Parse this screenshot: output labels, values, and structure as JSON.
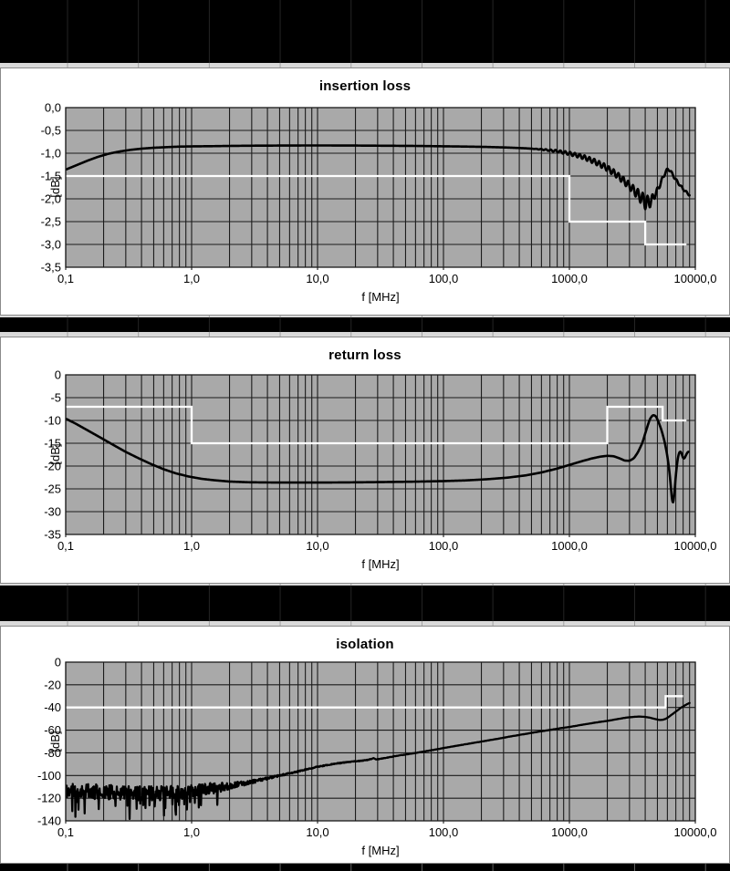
{
  "window": {
    "background_color": "#000000",
    "panel_background": "#ffffff"
  },
  "colors": {
    "plot_background": "#a9a9a9",
    "grid_line": "#1b1b1b",
    "measurement_trace": "#000000",
    "limit_line": "#ffffff",
    "panel_border": "#8a8a8a",
    "sheet_strip": "#d9d9d9",
    "text": "#000000"
  },
  "chart_data": [
    {
      "type": "line",
      "title": "insertion loss",
      "xlabel": "f [MHz]",
      "ylabel": "[dB]",
      "x_scale": "log",
      "x_range_mhz": [
        0.1,
        10000
      ],
      "y_range_db": [
        -3.5,
        0
      ],
      "y_tick_step_db": 0.5,
      "x_tick_values_mhz": [
        0.1,
        1,
        10,
        100,
        1000,
        10000
      ],
      "x_tick_labels": [
        "0,1",
        "1,0",
        "10,0",
        "100,0",
        "1000,0",
        "10000,0"
      ],
      "y_tick_labels": [
        "0,0",
        "-0,5",
        "-1,0",
        "-1,5",
        "-2,0",
        "-2,5",
        "-3,0",
        "-3,5"
      ],
      "grid": true,
      "legend": "none",
      "series": [
        {
          "name": "measured insertion loss",
          "color": "#000000",
          "keypoints_f_db": [
            [
              0.1,
              -1.36
            ],
            [
              0.12,
              -1.27
            ],
            [
              0.15,
              -1.16
            ],
            [
              0.18,
              -1.08
            ],
            [
              0.22,
              -1.01
            ],
            [
              0.27,
              -0.96
            ],
            [
              0.33,
              -0.925
            ],
            [
              0.4,
              -0.9
            ],
            [
              0.5,
              -0.88
            ],
            [
              0.65,
              -0.865
            ],
            [
              0.8,
              -0.855
            ],
            [
              1,
              -0.85
            ],
            [
              1.5,
              -0.845
            ],
            [
              2,
              -0.84
            ],
            [
              3,
              -0.835
            ],
            [
              5,
              -0.832
            ],
            [
              8,
              -0.83
            ],
            [
              12,
              -0.83
            ],
            [
              20,
              -0.832
            ],
            [
              35,
              -0.836
            ],
            [
              60,
              -0.84
            ],
            [
              100,
              -0.848
            ],
            [
              150,
              -0.854
            ],
            [
              220,
              -0.862
            ],
            [
              320,
              -0.875
            ],
            [
              450,
              -0.892
            ],
            [
              600,
              -0.915
            ],
            [
              800,
              -0.955
            ],
            [
              1000,
              -1.005
            ],
            [
              1250,
              -1.07
            ],
            [
              1550,
              -1.17
            ],
            [
              1900,
              -1.29
            ],
            [
              2300,
              -1.44
            ],
            [
              2700,
              -1.6
            ],
            [
              3100,
              -1.75
            ],
            [
              3500,
              -1.9
            ],
            [
              3850,
              -2.02
            ],
            [
              4100,
              -2.09
            ],
            [
              4350,
              -2.07
            ],
            [
              4600,
              -1.99
            ],
            [
              4900,
              -1.86
            ],
            [
              5200,
              -1.71
            ],
            [
              5500,
              -1.55
            ],
            [
              5800,
              -1.41
            ],
            [
              6050,
              -1.35
            ],
            [
              6300,
              -1.37
            ],
            [
              6600,
              -1.47
            ],
            [
              7000,
              -1.58
            ],
            [
              7400,
              -1.67
            ],
            [
              7800,
              -1.75
            ],
            [
              8300,
              -1.83
            ],
            [
              9000,
              -1.92
            ]
          ],
          "ripple": {
            "cycles_per_decade": 26,
            "amp_keypoints_f_db": [
              [
                500,
                0
              ],
              [
                800,
                0.025
              ],
              [
                1200,
                0.045
              ],
              [
                1800,
                0.06
              ],
              [
                2500,
                0.07
              ],
              [
                3200,
                0.09
              ],
              [
                3700,
                0.13
              ],
              [
                4050,
                0.17
              ],
              [
                4400,
                0.12
              ],
              [
                4800,
                0.07
              ],
              [
                5300,
                0.045
              ],
              [
                6000,
                0.03
              ],
              [
                7000,
                0.025
              ],
              [
                9000,
                0.02
              ]
            ]
          }
        },
        {
          "name": "limit line",
          "color": "#ffffff",
          "points_f_db": [
            [
              0.1,
              -1.5
            ],
            [
              1000,
              -1.5
            ],
            [
              1000,
              -2.5
            ],
            [
              4000,
              -2.5
            ],
            [
              4000,
              -3.0
            ],
            [
              8500,
              -3.0
            ]
          ]
        }
      ]
    },
    {
      "type": "line",
      "title": "return loss",
      "xlabel": "f [MHz]",
      "ylabel": "[dB]",
      "x_scale": "log",
      "x_range_mhz": [
        0.1,
        10000
      ],
      "y_range_db": [
        -35,
        0
      ],
      "y_tick_step_db": 5,
      "x_tick_values_mhz": [
        0.1,
        1,
        10,
        100,
        1000,
        10000
      ],
      "x_tick_labels": [
        "0,1",
        "1,0",
        "10,0",
        "100,0",
        "1000,0",
        "10000,0"
      ],
      "y_tick_labels": [
        "0",
        "-5",
        "-10",
        "-15",
        "-20",
        "-25",
        "-30",
        "-35"
      ],
      "grid": true,
      "legend": "none",
      "series": [
        {
          "name": "measured return loss",
          "color": "#000000",
          "keypoints_f_db": [
            [
              0.1,
              -9.6
            ],
            [
              0.12,
              -10.7
            ],
            [
              0.15,
              -12.2
            ],
            [
              0.19,
              -13.8
            ],
            [
              0.24,
              -15.4
            ],
            [
              0.3,
              -16.9
            ],
            [
              0.38,
              -18.3
            ],
            [
              0.48,
              -19.6
            ],
            [
              0.6,
              -20.7
            ],
            [
              0.75,
              -21.6
            ],
            [
              0.95,
              -22.3
            ],
            [
              1.2,
              -22.8
            ],
            [
              1.5,
              -23.1
            ],
            [
              2,
              -23.4
            ],
            [
              2.8,
              -23.55
            ],
            [
              4,
              -23.6
            ],
            [
              6,
              -23.62
            ],
            [
              9,
              -23.62
            ],
            [
              14,
              -23.6
            ],
            [
              22,
              -23.56
            ],
            [
              35,
              -23.5
            ],
            [
              60,
              -23.42
            ],
            [
              100,
              -23.3
            ],
            [
              150,
              -23.15
            ],
            [
              220,
              -22.9
            ],
            [
              320,
              -22.55
            ],
            [
              450,
              -22.05
            ],
            [
              600,
              -21.4
            ],
            [
              800,
              -20.55
            ],
            [
              1000,
              -19.75
            ],
            [
              1250,
              -18.95
            ],
            [
              1500,
              -18.35
            ],
            [
              1750,
              -17.95
            ],
            [
              2000,
              -17.75
            ],
            [
              2250,
              -17.85
            ],
            [
              2500,
              -18.3
            ],
            [
              2750,
              -18.8
            ],
            [
              3000,
              -18.85
            ],
            [
              3250,
              -18.3
            ],
            [
              3500,
              -17.0
            ],
            [
              3800,
              -14.9
            ],
            [
              4100,
              -11.9
            ],
            [
              4350,
              -9.7
            ],
            [
              4600,
              -8.8
            ],
            [
              4850,
              -9.0
            ],
            [
              5100,
              -10.3
            ],
            [
              5400,
              -12.2
            ],
            [
              5700,
              -14.6
            ],
            [
              6000,
              -17.8
            ],
            [
              6250,
              -21.5
            ],
            [
              6450,
              -25.8
            ],
            [
              6600,
              -28.7
            ],
            [
              6750,
              -27.5
            ],
            [
              6950,
              -23.0
            ],
            [
              7150,
              -19.5
            ],
            [
              7350,
              -17.4
            ],
            [
              7550,
              -16.7
            ],
            [
              7750,
              -17.0
            ],
            [
              7950,
              -18.2
            ],
            [
              8150,
              -18.5
            ],
            [
              8400,
              -17.7
            ],
            [
              8650,
              -17.0
            ],
            [
              8800,
              -16.8
            ]
          ]
        },
        {
          "name": "limit line",
          "color": "#ffffff",
          "points_f_db": [
            [
              0.1,
              -7
            ],
            [
              1,
              -7
            ],
            [
              1,
              -15
            ],
            [
              2000,
              -15
            ],
            [
              2000,
              -7
            ],
            [
              5500,
              -7
            ],
            [
              5500,
              -10
            ],
            [
              8500,
              -10
            ]
          ]
        }
      ]
    },
    {
      "type": "line",
      "title": "isolation",
      "xlabel": "f [MHz]",
      "ylabel": "[dB]",
      "x_scale": "log",
      "x_range_mhz": [
        0.1,
        10000
      ],
      "y_range_db": [
        -140,
        0
      ],
      "y_tick_step_db": 20,
      "x_tick_values_mhz": [
        0.1,
        1,
        10,
        100,
        1000,
        10000
      ],
      "x_tick_labels": [
        "0,1",
        "1,0",
        "10,0",
        "100,0",
        "1000,0",
        "10000,0"
      ],
      "y_tick_labels": [
        "0",
        "-20",
        "-40",
        "-60",
        "-80",
        "-100",
        "-120",
        "-140"
      ],
      "grid": true,
      "legend": "none",
      "series": [
        {
          "name": "measured isolation",
          "color": "#000000",
          "keypoints_f_db": [
            [
              0.1,
              -113.5
            ],
            [
              0.2,
              -114.5
            ],
            [
              0.3,
              -115.2
            ],
            [
              0.45,
              -115.6
            ],
            [
              0.6,
              -115.5
            ],
            [
              0.8,
              -114.8
            ],
            [
              1.0,
              -113.8
            ],
            [
              1.2,
              -112.6
            ],
            [
              1.5,
              -111.2
            ],
            [
              1.8,
              -109.9
            ],
            [
              2.2,
              -108.4
            ],
            [
              2.7,
              -106.6
            ],
            [
              3.3,
              -104.6
            ],
            [
              4,
              -102.5
            ],
            [
              5,
              -100.1
            ],
            [
              6.5,
              -97.3
            ],
            [
              8,
              -94.9
            ],
            [
              10,
              -92.3
            ],
            [
              13,
              -90.0
            ],
            [
              17,
              -88.3
            ],
            [
              21,
              -87.2
            ],
            [
              25,
              -86.3
            ],
            [
              27,
              -85.3
            ],
            [
              28,
              -84.4
            ],
            [
              29,
              -85.9
            ],
            [
              32,
              -85.2
            ],
            [
              40,
              -83.2
            ],
            [
              50,
              -81.5
            ],
            [
              65,
              -79.5
            ],
            [
              85,
              -77.2
            ],
            [
              100,
              -75.8
            ],
            [
              130,
              -73.6
            ],
            [
              170,
              -71.4
            ],
            [
              220,
              -69.3
            ],
            [
              280,
              -67.3
            ],
            [
              360,
              -65.1
            ],
            [
              450,
              -63.3
            ],
            [
              560,
              -61.5
            ],
            [
              700,
              -59.8
            ],
            [
              850,
              -58.3
            ],
            [
              1000,
              -57.2
            ],
            [
              1300,
              -55.0
            ],
            [
              1600,
              -53.4
            ],
            [
              2000,
              -51.8
            ],
            [
              2400,
              -50.3
            ],
            [
              2800,
              -49.0
            ],
            [
              3200,
              -48.3
            ],
            [
              3600,
              -48.0
            ],
            [
              4000,
              -48.3
            ],
            [
              4400,
              -49.1
            ],
            [
              4800,
              -50.2
            ],
            [
              5200,
              -51.0
            ],
            [
              5500,
              -50.9
            ],
            [
              5800,
              -50.1
            ],
            [
              6100,
              -48.6
            ],
            [
              6500,
              -46.3
            ],
            [
              6900,
              -44.2
            ],
            [
              7300,
              -42.1
            ],
            [
              7700,
              -40.2
            ],
            [
              8100,
              -38.7
            ],
            [
              8500,
              -37.4
            ],
            [
              9000,
              -35.9
            ]
          ],
          "noise": {
            "seed": 11,
            "amp_keypoints_f_db": [
              [
                0.1,
                6.5
              ],
              [
                0.7,
                6.5
              ],
              [
                1.0,
                6.0
              ],
              [
                1.4,
                5.0
              ],
              [
                1.8,
                3.8
              ],
              [
                2.2,
                2.6
              ],
              [
                2.8,
                1.7
              ],
              [
                3.5,
                1.2
              ],
              [
                5,
                0.8
              ],
              [
                7,
                0.6
              ],
              [
                10,
                0.45
              ],
              [
                20,
                0.3
              ],
              [
                40,
                0.18
              ],
              [
                80,
                0.1
              ],
              [
                10000,
                0.07
              ]
            ],
            "spike_probability": 0.09,
            "spike_extra_db_max": 16,
            "spike_f_max": 2.0
          }
        },
        {
          "name": "limit line",
          "color": "#ffffff",
          "points_f_db": [
            [
              0.1,
              -40
            ],
            [
              5800,
              -40
            ],
            [
              5800,
              -30
            ],
            [
              8000,
              -30
            ]
          ]
        }
      ]
    }
  ]
}
